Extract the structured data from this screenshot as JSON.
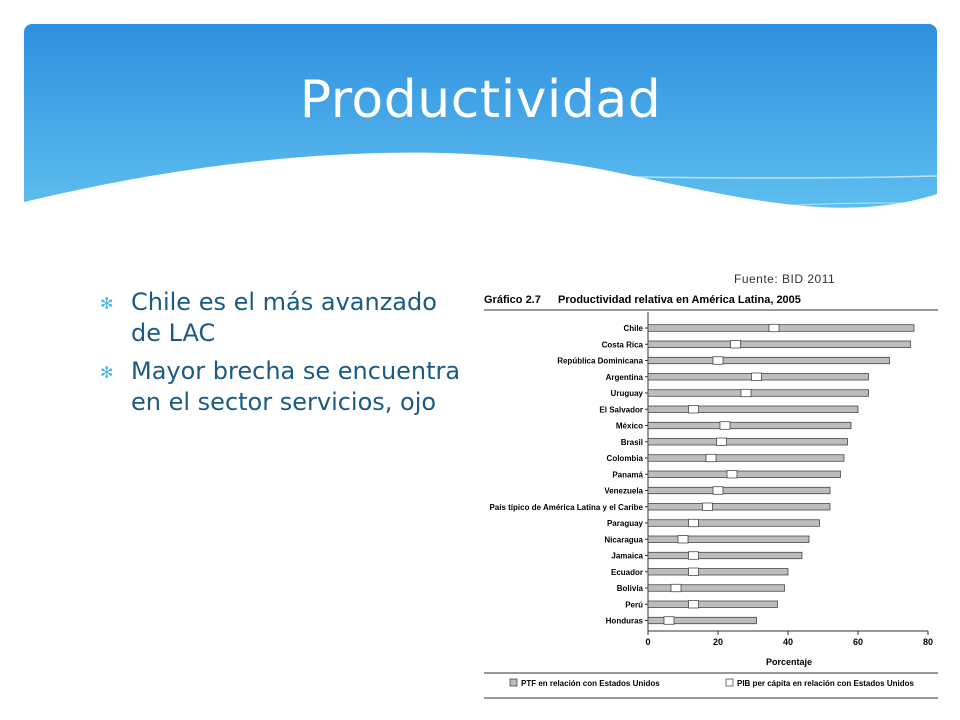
{
  "slide": {
    "title": "Productividad",
    "source": "Fuente: BID 2011",
    "bullets": [
      "Chile es el más avanzado de LAC",
      "Mayor brecha se encuentra en el sector servicios, ojo"
    ]
  },
  "colors": {
    "banner_top": "#2f8fdf",
    "banner_bottom": "#6fd0f5",
    "text_blue": "#1b5a82",
    "bar_gray": "#bdbdbd",
    "bar_white": "#ffffff"
  },
  "icons": {
    "bullet": "✻"
  },
  "chart_data": {
    "type": "bar",
    "orientation": "horizontal",
    "title_prefix": "Gráfico 2.7",
    "title": "Productividad relativa en América Latina, 2005",
    "xlabel": "Porcentaje",
    "ylabel": "",
    "xlim": [
      0,
      80
    ],
    "xticks": [
      0,
      20,
      40,
      60,
      80
    ],
    "categories": [
      "Chile",
      "Costa Rica",
      "República Dominicana",
      "Argentina",
      "Uruguay",
      "El Salvador",
      "México",
      "Brasil",
      "Colombia",
      "Panamá",
      "Venezuela",
      "País típico de América Latina y el Caribe",
      "Paraguay",
      "Nicaragua",
      "Jamaica",
      "Ecuador",
      "Bolivia",
      "Perú",
      "Honduras"
    ],
    "series": [
      {
        "name": "PTF en relación con Estados Unidos",
        "values": [
          76,
          75,
          69,
          63,
          63,
          60,
          58,
          57,
          56,
          55,
          52,
          52,
          49,
          46,
          44,
          40,
          39,
          37,
          31
        ]
      },
      {
        "name": "PIB per cápita en relación con Estados Unidos",
        "values": [
          36,
          25,
          20,
          31,
          28,
          13,
          22,
          21,
          18,
          24,
          20,
          17,
          13,
          10,
          13,
          13,
          8,
          13,
          6
        ]
      }
    ],
    "legend_position": "bottom"
  }
}
